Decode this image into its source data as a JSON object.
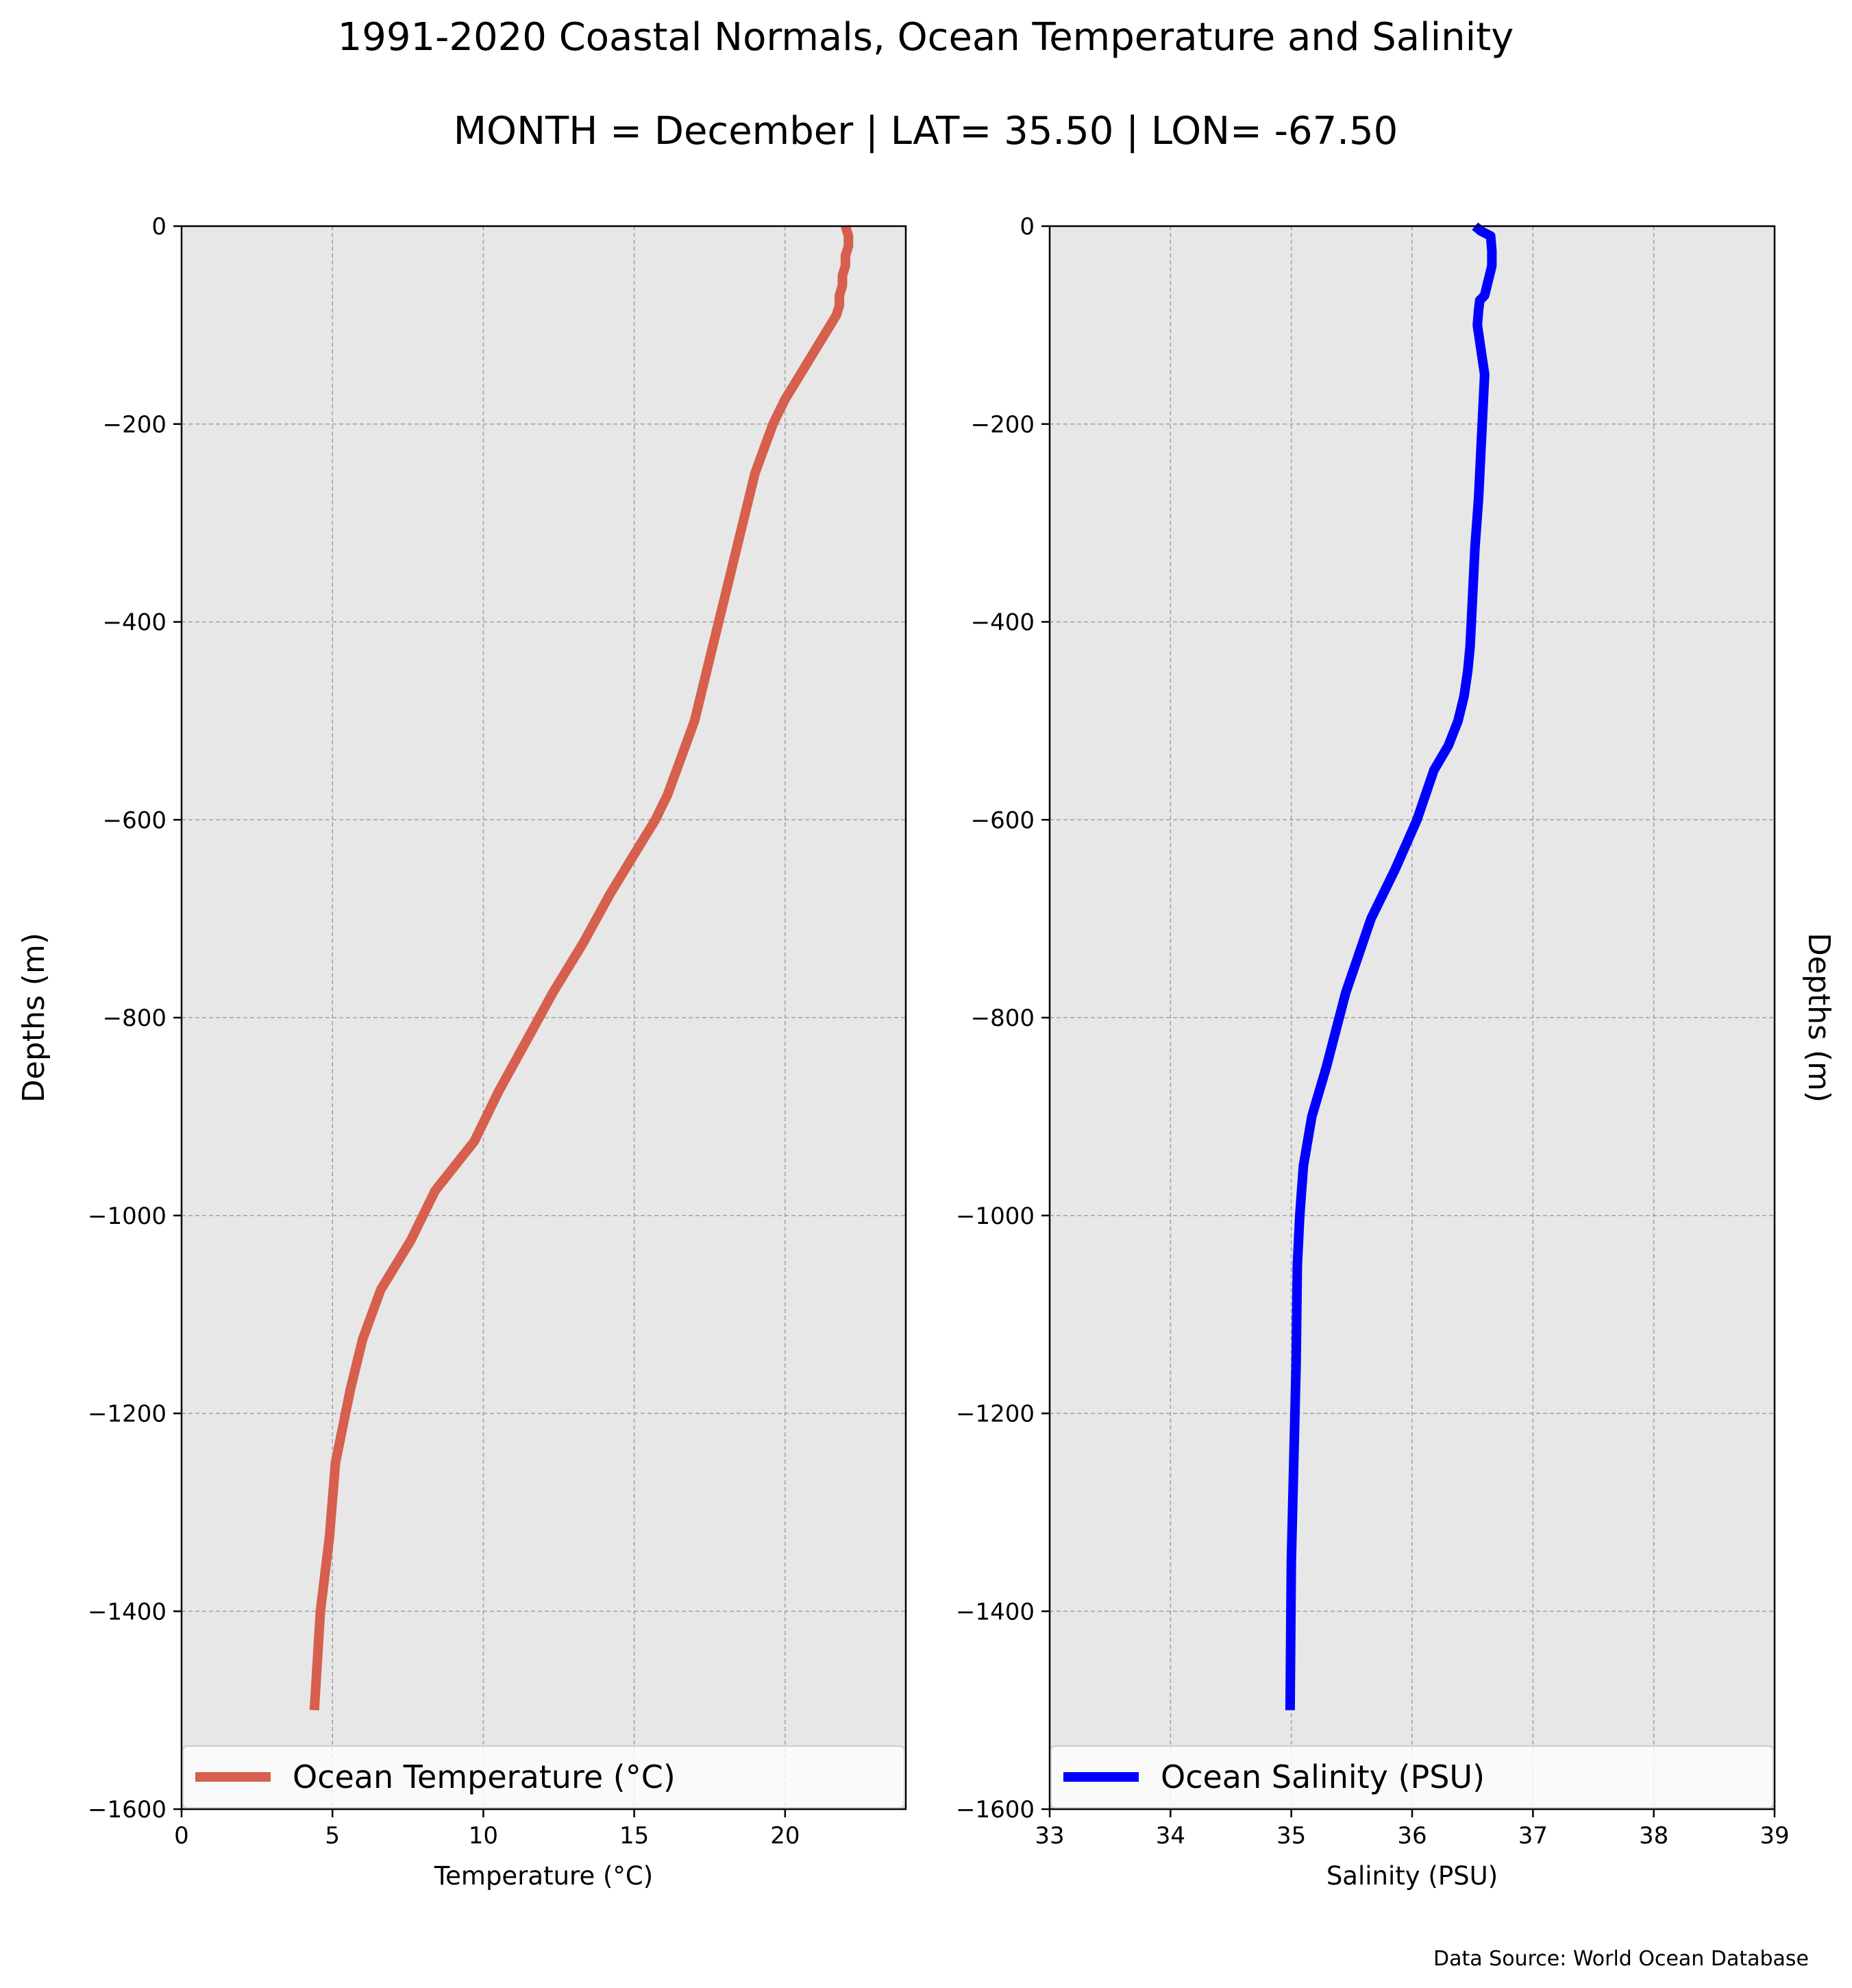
{
  "figure": {
    "title": "1991-2020 Coastal Normals, Ocean Temperature and Salinity",
    "subtitle": "MONTH = December | LAT= 35.50 | LON= -67.50",
    "source_note": "Data Source: World Ocean Database",
    "background": "#e7e7e7"
  },
  "chart_data": [
    {
      "type": "line",
      "xlabel": "Temperature (°C)",
      "ylabel": "Depths (m)",
      "ylabel_side": "left",
      "xlim": [
        0,
        24
      ],
      "ylim": [
        -1600,
        0
      ],
      "xticks": [
        0,
        5,
        10,
        15,
        20
      ],
      "xtick_labels": [
        "0",
        "5",
        "10",
        "15",
        "20"
      ],
      "yticks": [
        0,
        -200,
        -400,
        -600,
        -800,
        -1000,
        -1200,
        -1400,
        -1600
      ],
      "ytick_labels": [
        "0",
        "−200",
        "−400",
        "−600",
        "−800",
        "−1000",
        "−1200",
        "−1400",
        "−1600"
      ],
      "grid": true,
      "legend": "bottom",
      "series": [
        {
          "name": "Ocean Temperature (°C)",
          "color": "#d65f4d",
          "x": [
            22.0,
            22.1,
            22.1,
            22.0,
            22.0,
            21.9,
            21.9,
            21.8,
            21.8,
            21.7,
            21.5,
            21.0,
            20.5,
            20.0,
            19.6,
            19.3,
            19.0,
            18.8,
            18.6,
            18.4,
            18.2,
            18.0,
            17.8,
            17.6,
            17.4,
            17.2,
            17.0,
            16.7,
            16.4,
            16.1,
            15.7,
            15.2,
            14.2,
            13.3,
            12.3,
            11.4,
            10.5,
            9.7,
            8.4,
            7.6,
            6.6,
            6.0,
            5.6,
            5.1,
            4.9,
            4.6,
            4.4
          ],
          "y": [
            0,
            -10,
            -20,
            -30,
            -40,
            -50,
            -60,
            -70,
            -80,
            -90,
            -100,
            -125,
            -150,
            -175,
            -200,
            -225,
            -250,
            -275,
            -300,
            -325,
            -350,
            -375,
            -400,
            -425,
            -450,
            -475,
            -500,
            -525,
            -550,
            -575,
            -600,
            -625,
            -675,
            -725,
            -775,
            -825,
            -875,
            -925,
            -975,
            -1025,
            -1075,
            -1125,
            -1175,
            -1250,
            -1325,
            -1400,
            -1500
          ]
        }
      ]
    },
    {
      "type": "line",
      "xlabel": "Salinity (PSU)",
      "ylabel": "Depths (m)",
      "ylabel_side": "right",
      "xlim": [
        33,
        39
      ],
      "ylim": [
        -1600,
        0
      ],
      "xticks": [
        33,
        34,
        35,
        36,
        37,
        38,
        39
      ],
      "xtick_labels": [
        "33",
        "34",
        "35",
        "36",
        "37",
        "38",
        "39"
      ],
      "yticks": [
        0,
        -200,
        -400,
        -600,
        -800,
        -1000,
        -1200,
        -1400,
        -1600
      ],
      "ytick_labels": [
        "0",
        "−200",
        "−400",
        "−600",
        "−800",
        "−1000",
        "−1200",
        "−1400",
        "−1600"
      ],
      "grid": true,
      "legend": "bottom",
      "series": [
        {
          "name": "Ocean Salinity (PSU)",
          "color": "#0000ff",
          "x": [
            36.52,
            36.57,
            36.65,
            36.66,
            36.66,
            36.64,
            36.62,
            36.6,
            36.56,
            36.55,
            36.54,
            36.57,
            36.6,
            36.58,
            36.57,
            36.55,
            36.52,
            36.5,
            36.48,
            36.46,
            36.43,
            36.38,
            36.3,
            36.18,
            36.04,
            35.86,
            35.66,
            35.45,
            35.29,
            35.17,
            35.1,
            35.07,
            35.05,
            35.04,
            35.02,
            35.0,
            34.99
          ],
          "y": [
            0,
            -5,
            -10,
            -25,
            -40,
            -50,
            -60,
            -70,
            -75,
            -85,
            -100,
            -125,
            -150,
            -200,
            -225,
            -275,
            -325,
            -375,
            -425,
            -450,
            -475,
            -500,
            -525,
            -550,
            -600,
            -650,
            -700,
            -775,
            -850,
            -900,
            -950,
            -1000,
            -1050,
            -1150,
            -1250,
            -1350,
            -1500
          ]
        }
      ]
    }
  ]
}
